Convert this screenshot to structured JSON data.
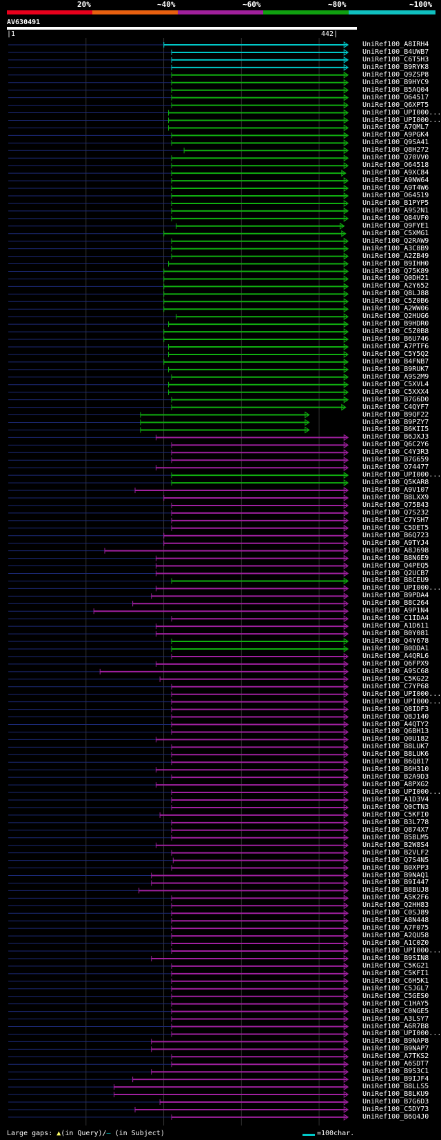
{
  "legend": {
    "labels": [
      "20%",
      "~40%",
      "~60%",
      "~80%",
      "~100%"
    ],
    "colors": [
      "#e8001c",
      "#e86010",
      "#a0209c",
      "#10a010",
      "#10c0c0"
    ]
  },
  "query": {
    "name": "AV630491",
    "start": "1",
    "end": "442"
  },
  "footer": {
    "gaps_label": "Large gaps:",
    "in_query": "(in Query)/",
    "in_subject": "(in Subject)",
    "scale_label": "=100char."
  },
  "chart_data": {
    "type": "alignment-overview",
    "query_length": 442,
    "hits": [
      {
        "name": "UniRef100_A8IRH4",
        "start": 200,
        "end": 436,
        "color": "cyan"
      },
      {
        "name": "UniRef100_B4UWB7",
        "start": 210,
        "end": 436,
        "color": "cyan"
      },
      {
        "name": "UniRef100_C6T5H3",
        "start": 210,
        "end": 436,
        "color": "cyan"
      },
      {
        "name": "UniRef100_B9RYK8",
        "start": 210,
        "end": 436,
        "color": "cyan"
      },
      {
        "name": "UniRef100_Q9ZSP8",
        "start": 210,
        "end": 436,
        "color": "green"
      },
      {
        "name": "UniRef100_B9HYC9",
        "start": 210,
        "end": 436,
        "color": "green"
      },
      {
        "name": "UniRef100_B5AQ04",
        "start": 210,
        "end": 436,
        "color": "green"
      },
      {
        "name": "UniRef100_O64517",
        "start": 210,
        "end": 436,
        "color": "green"
      },
      {
        "name": "UniRef100_Q6XPT5",
        "start": 210,
        "end": 436,
        "color": "green"
      },
      {
        "name": "UniRef100_UPI000...",
        "start": 206,
        "end": 436,
        "color": "green"
      },
      {
        "name": "UniRef100_UPI000...",
        "start": 206,
        "end": 436,
        "color": "green"
      },
      {
        "name": "UniRef100_A7QML7",
        "start": 206,
        "end": 436,
        "color": "green"
      },
      {
        "name": "UniRef100_A9PGK4",
        "start": 210,
        "end": 436,
        "color": "green"
      },
      {
        "name": "UniRef100_Q9SA41",
        "start": 210,
        "end": 436,
        "color": "green"
      },
      {
        "name": "UniRef100_Q8H272",
        "start": 226,
        "end": 436,
        "color": "green"
      },
      {
        "name": "UniRef100_Q70VV0",
        "start": 210,
        "end": 436,
        "color": "green"
      },
      {
        "name": "UniRef100_O64518",
        "start": 210,
        "end": 436,
        "color": "green"
      },
      {
        "name": "UniRef100_A9XC84",
        "start": 210,
        "end": 433,
        "color": "green"
      },
      {
        "name": "UniRef100_A9NW64",
        "start": 210,
        "end": 436,
        "color": "green"
      },
      {
        "name": "UniRef100_A9T4W6",
        "start": 210,
        "end": 436,
        "color": "green"
      },
      {
        "name": "UniRef100_O64519",
        "start": 210,
        "end": 436,
        "color": "green"
      },
      {
        "name": "UniRef100_B1PYP5",
        "start": 210,
        "end": 436,
        "color": "green"
      },
      {
        "name": "UniRef100_A9S2N1",
        "start": 210,
        "end": 436,
        "color": "green"
      },
      {
        "name": "UniRef100_Q84VF0",
        "start": 210,
        "end": 436,
        "color": "green"
      },
      {
        "name": "UniRef100_Q9FYE1",
        "start": 216,
        "end": 431,
        "color": "green"
      },
      {
        "name": "UniRef100_C5XMG1",
        "start": 200,
        "end": 433,
        "color": "green"
      },
      {
        "name": "UniRef100_Q2RAW9",
        "start": 210,
        "end": 436,
        "color": "green"
      },
      {
        "name": "UniRef100_A3C8B9",
        "start": 210,
        "end": 436,
        "color": "green"
      },
      {
        "name": "UniRef100_A2ZB49",
        "start": 210,
        "end": 436,
        "color": "green"
      },
      {
        "name": "UniRef100_B9IHH0",
        "start": 206,
        "end": 436,
        "color": "green"
      },
      {
        "name": "UniRef100_Q75K89",
        "start": 200,
        "end": 436,
        "color": "green"
      },
      {
        "name": "UniRef100_Q0DH21",
        "start": 200,
        "end": 436,
        "color": "green"
      },
      {
        "name": "UniRef100_A2Y652",
        "start": 200,
        "end": 436,
        "color": "green"
      },
      {
        "name": "UniRef100_Q8LJ88",
        "start": 200,
        "end": 436,
        "color": "green"
      },
      {
        "name": "UniRef100_C5Z0B6",
        "start": 200,
        "end": 436,
        "color": "green"
      },
      {
        "name": "UniRef100_A2WW06",
        "start": 200,
        "end": 436,
        "color": "green"
      },
      {
        "name": "UniRef100_Q2HUG6",
        "start": 216,
        "end": 436,
        "color": "green"
      },
      {
        "name": "UniRef100_B9HDR0",
        "start": 206,
        "end": 436,
        "color": "green"
      },
      {
        "name": "UniRef100_C5Z0B8",
        "start": 200,
        "end": 436,
        "color": "green"
      },
      {
        "name": "UniRef100_B6U746",
        "start": 200,
        "end": 436,
        "color": "green"
      },
      {
        "name": "UniRef100_A7PTF6",
        "start": 206,
        "end": 436,
        "color": "green"
      },
      {
        "name": "UniRef100_C5Y5Q2",
        "start": 206,
        "end": 436,
        "color": "green"
      },
      {
        "name": "UniRef100_B4FNB7",
        "start": 200,
        "end": 436,
        "color": "green"
      },
      {
        "name": "UniRef100_B9RUK7",
        "start": 206,
        "end": 436,
        "color": "green"
      },
      {
        "name": "UniRef100_A9S2M9",
        "start": 210,
        "end": 436,
        "color": "green"
      },
      {
        "name": "UniRef100_C5XVL4",
        "start": 206,
        "end": 436,
        "color": "green"
      },
      {
        "name": "UniRef100_C5XXX4",
        "start": 206,
        "end": 436,
        "color": "green"
      },
      {
        "name": "UniRef100_B7G6D0",
        "start": 210,
        "end": 436,
        "color": "green"
      },
      {
        "name": "UniRef100_C4QYF7",
        "start": 210,
        "end": 433,
        "color": "green"
      },
      {
        "name": "UniRef100_B9QF22",
        "start": 170,
        "end": 386,
        "color": "green"
      },
      {
        "name": "UniRef100_B9PZY7",
        "start": 170,
        "end": 386,
        "color": "green"
      },
      {
        "name": "UniRef100_B6KII5",
        "start": 170,
        "end": 386,
        "color": "green"
      },
      {
        "name": "UniRef100_B6JXJ3",
        "start": 190,
        "end": 436,
        "color": "purple"
      },
      {
        "name": "UniRef100_Q6C2Y6",
        "start": 210,
        "end": 436,
        "color": "purple"
      },
      {
        "name": "UniRef100_C4Y3R3",
        "start": 210,
        "end": 436,
        "color": "purple"
      },
      {
        "name": "UniRef100_B7G659",
        "start": 210,
        "end": 436,
        "color": "purple"
      },
      {
        "name": "UniRef100_O74477",
        "start": 190,
        "end": 436,
        "color": "purple"
      },
      {
        "name": "UniRef100_UPI000...",
        "start": 210,
        "end": 436,
        "color": "green"
      },
      {
        "name": "UniRef100_Q5KAR8",
        "start": 210,
        "end": 436,
        "color": "green"
      },
      {
        "name": "UniRef100_A9V107",
        "start": 163,
        "end": 436,
        "color": "purple"
      },
      {
        "name": "UniRef100_B8LXX9",
        "start": 200,
        "end": 436,
        "color": "purple"
      },
      {
        "name": "UniRef100_Q75B43",
        "start": 210,
        "end": 436,
        "color": "purple"
      },
      {
        "name": "UniRef100_Q7S232",
        "start": 210,
        "end": 436,
        "color": "purple"
      },
      {
        "name": "UniRef100_C7YSH7",
        "start": 210,
        "end": 436,
        "color": "purple"
      },
      {
        "name": "UniRef100_C5DET5",
        "start": 210,
        "end": 436,
        "color": "purple"
      },
      {
        "name": "UniRef100_B6Q723",
        "start": 200,
        "end": 436,
        "color": "purple"
      },
      {
        "name": "UniRef100_A9TYJ4",
        "start": 200,
        "end": 436,
        "color": "purple"
      },
      {
        "name": "UniRef100_A8J698",
        "start": 124,
        "end": 436,
        "color": "purple"
      },
      {
        "name": "UniRef100_B8N6E9",
        "start": 190,
        "end": 436,
        "color": "purple"
      },
      {
        "name": "UniRef100_Q4PEQ5",
        "start": 190,
        "end": 436,
        "color": "purple"
      },
      {
        "name": "UniRef100_Q2UCB7",
        "start": 190,
        "end": 436,
        "color": "purple"
      },
      {
        "name": "UniRef100_B8CEU9",
        "start": 210,
        "end": 436,
        "color": "green"
      },
      {
        "name": "UniRef100_UPI000...",
        "start": 190,
        "end": 436,
        "color": "purple"
      },
      {
        "name": "UniRef100_B9PDA4",
        "start": 184,
        "end": 436,
        "color": "purple"
      },
      {
        "name": "UniRef100_B8C264",
        "start": 160,
        "end": 436,
        "color": "purple"
      },
      {
        "name": "UniRef100_A9P1N4",
        "start": 110,
        "end": 436,
        "color": "purple"
      },
      {
        "name": "UniRef100_C1IDA4",
        "start": 210,
        "end": 436,
        "color": "purple"
      },
      {
        "name": "UniRef100_A1D611",
        "start": 190,
        "end": 436,
        "color": "purple"
      },
      {
        "name": "UniRef100_B0Y081",
        "start": 190,
        "end": 436,
        "color": "purple"
      },
      {
        "name": "UniRef100_Q4Y678",
        "start": 210,
        "end": 436,
        "color": "green"
      },
      {
        "name": "UniRef100_B0DDA1",
        "start": 210,
        "end": 436,
        "color": "green"
      },
      {
        "name": "UniRef100_A4QRL6",
        "start": 210,
        "end": 436,
        "color": "purple"
      },
      {
        "name": "UniRef100_Q6FPX9",
        "start": 190,
        "end": 436,
        "color": "purple"
      },
      {
        "name": "UniRef100_A9SC68",
        "start": 118,
        "end": 436,
        "color": "purple"
      },
      {
        "name": "UniRef100_C5KG22",
        "start": 195,
        "end": 436,
        "color": "purple"
      },
      {
        "name": "UniRef100_C7YP68",
        "start": 210,
        "end": 436,
        "color": "purple"
      },
      {
        "name": "UniRef100_UPI000...",
        "start": 210,
        "end": 436,
        "color": "purple"
      },
      {
        "name": "UniRef100_UPI000...",
        "start": 210,
        "end": 436,
        "color": "purple"
      },
      {
        "name": "UniRef100_Q8IDF3",
        "start": 210,
        "end": 436,
        "color": "purple"
      },
      {
        "name": "UniRef100_Q8J140",
        "start": 210,
        "end": 436,
        "color": "purple"
      },
      {
        "name": "UniRef100_A4QTY2",
        "start": 210,
        "end": 436,
        "color": "purple"
      },
      {
        "name": "UniRef100_Q6BH13",
        "start": 210,
        "end": 436,
        "color": "purple"
      },
      {
        "name": "UniRef100_Q0U182",
        "start": 190,
        "end": 436,
        "color": "purple"
      },
      {
        "name": "UniRef100_B8LUK7",
        "start": 210,
        "end": 436,
        "color": "purple"
      },
      {
        "name": "UniRef100_B8LUK6",
        "start": 210,
        "end": 436,
        "color": "purple"
      },
      {
        "name": "UniRef100_B6Q817",
        "start": 210,
        "end": 436,
        "color": "purple"
      },
      {
        "name": "UniRef100_B6H310",
        "start": 190,
        "end": 436,
        "color": "purple"
      },
      {
        "name": "UniRef100_B2A9D3",
        "start": 210,
        "end": 436,
        "color": "purple"
      },
      {
        "name": "UniRef100_A8PXG2",
        "start": 190,
        "end": 436,
        "color": "purple"
      },
      {
        "name": "UniRef100_UPI000...",
        "start": 210,
        "end": 436,
        "color": "purple"
      },
      {
        "name": "UniRef100_A1D3V4",
        "start": 210,
        "end": 436,
        "color": "purple"
      },
      {
        "name": "UniRef100_Q0CTN3",
        "start": 210,
        "end": 436,
        "color": "purple"
      },
      {
        "name": "UniRef100_C5KFI0",
        "start": 195,
        "end": 436,
        "color": "purple"
      },
      {
        "name": "UniRef100_B3L778",
        "start": 210,
        "end": 436,
        "color": "purple"
      },
      {
        "name": "UniRef100_Q874X7",
        "start": 210,
        "end": 436,
        "color": "purple"
      },
      {
        "name": "UniRef100_B5BLM5",
        "start": 210,
        "end": 436,
        "color": "purple"
      },
      {
        "name": "UniRef100_B2W8S4",
        "start": 190,
        "end": 436,
        "color": "purple"
      },
      {
        "name": "UniRef100_B2VLF2",
        "start": 210,
        "end": 436,
        "color": "purple"
      },
      {
        "name": "UniRef100_Q7S4N5",
        "start": 212,
        "end": 436,
        "color": "purple"
      },
      {
        "name": "UniRef100_B0XPP3",
        "start": 210,
        "end": 436,
        "color": "purple"
      },
      {
        "name": "UniRef100_B9NAQ1",
        "start": 184,
        "end": 436,
        "color": "purple"
      },
      {
        "name": "UniRef100_B9I447",
        "start": 184,
        "end": 436,
        "color": "purple"
      },
      {
        "name": "UniRef100_B8BUJ8",
        "start": 168,
        "end": 436,
        "color": "purple"
      },
      {
        "name": "UniRef100_A5K2F6",
        "start": 210,
        "end": 436,
        "color": "purple"
      },
      {
        "name": "UniRef100_Q2HH83",
        "start": 210,
        "end": 436,
        "color": "purple"
      },
      {
        "name": "UniRef100_C0SJ89",
        "start": 210,
        "end": 436,
        "color": "purple"
      },
      {
        "name": "UniRef100_A8N448",
        "start": 210,
        "end": 436,
        "color": "purple"
      },
      {
        "name": "UniRef100_A7F075",
        "start": 210,
        "end": 436,
        "color": "purple"
      },
      {
        "name": "UniRef100_A2QU58",
        "start": 210,
        "end": 436,
        "color": "purple"
      },
      {
        "name": "UniRef100_A1C0Z0",
        "start": 210,
        "end": 436,
        "color": "purple"
      },
      {
        "name": "UniRef100_UPI000...",
        "start": 210,
        "end": 436,
        "color": "purple"
      },
      {
        "name": "UniRef100_B9SIN8",
        "start": 184,
        "end": 436,
        "color": "purple"
      },
      {
        "name": "UniRef100_C5KG21",
        "start": 210,
        "end": 436,
        "color": "purple"
      },
      {
        "name": "UniRef100_C5KFI1",
        "start": 210,
        "end": 436,
        "color": "purple"
      },
      {
        "name": "UniRef100_C6H5K1",
        "start": 210,
        "end": 436,
        "color": "purple"
      },
      {
        "name": "UniRef100_C5JGL7",
        "start": 210,
        "end": 436,
        "color": "purple"
      },
      {
        "name": "UniRef100_C5GES0",
        "start": 210,
        "end": 436,
        "color": "purple"
      },
      {
        "name": "UniRef100_C1HAY5",
        "start": 210,
        "end": 436,
        "color": "purple"
      },
      {
        "name": "UniRef100_C0NGE5",
        "start": 210,
        "end": 436,
        "color": "purple"
      },
      {
        "name": "UniRef100_A3LSY7",
        "start": 210,
        "end": 436,
        "color": "purple"
      },
      {
        "name": "UniRef100_A6R7B8",
        "start": 210,
        "end": 436,
        "color": "purple"
      },
      {
        "name": "UniRef100_UPI000...",
        "start": 210,
        "end": 436,
        "color": "purple"
      },
      {
        "name": "UniRef100_B9NAP8",
        "start": 184,
        "end": 436,
        "color": "purple"
      },
      {
        "name": "UniRef100_B9NAP7",
        "start": 184,
        "end": 436,
        "color": "purple"
      },
      {
        "name": "UniRef100_A7TKS2",
        "start": 210,
        "end": 436,
        "color": "purple"
      },
      {
        "name": "UniRef100_A6SDT7",
        "start": 210,
        "end": 436,
        "color": "purple"
      },
      {
        "name": "UniRef100_B9S3C1",
        "start": 184,
        "end": 436,
        "color": "purple"
      },
      {
        "name": "UniRef100_B9IJF4",
        "start": 160,
        "end": 436,
        "color": "purple"
      },
      {
        "name": "UniRef100_B8LLS5",
        "start": 136,
        "end": 436,
        "color": "purple"
      },
      {
        "name": "UniRef100_B8LKU9",
        "start": 136,
        "end": 436,
        "color": "purple"
      },
      {
        "name": "UniRef100_B7G6D3",
        "start": 195,
        "end": 436,
        "color": "purple"
      },
      {
        "name": "UniRef100_C5DY73",
        "start": 163,
        "end": 436,
        "color": "purple"
      },
      {
        "name": "UniRef100_B6Q4J0",
        "start": 210,
        "end": 436,
        "color": "purple"
      }
    ]
  }
}
